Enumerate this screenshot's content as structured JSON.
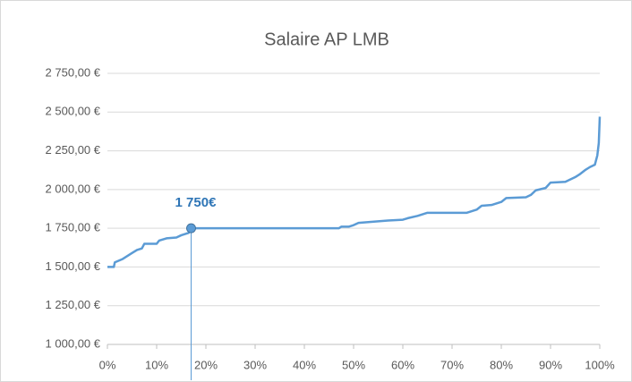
{
  "chart_data": {
    "type": "line",
    "title": "Salaire AP LMB",
    "color": "#5b9bd5",
    "grid": true,
    "x": [
      0,
      1.3,
      1.5,
      3,
      4,
      5,
      6,
      7,
      7.5,
      10,
      10.5,
      12,
      14,
      15,
      16.5,
      17,
      47,
      47.5,
      49,
      50,
      51,
      53,
      55,
      57,
      60,
      61,
      63,
      65,
      73,
      74,
      75,
      76,
      78,
      80,
      81,
      85,
      86,
      87,
      89,
      90,
      93,
      94,
      95,
      96,
      97,
      98,
      99,
      99.5,
      99.8,
      100
    ],
    "values": [
      1500,
      1500,
      1530,
      1550,
      1570,
      1590,
      1610,
      1620,
      1650,
      1650,
      1670,
      1685,
      1690,
      1705,
      1720,
      1750,
      1750,
      1760,
      1760,
      1770,
      1785,
      1790,
      1795,
      1800,
      1805,
      1815,
      1830,
      1850,
      1850,
      1860,
      1870,
      1895,
      1900,
      1920,
      1945,
      1950,
      1965,
      1995,
      2010,
      2045,
      2050,
      2065,
      2080,
      2100,
      2125,
      2145,
      2160,
      2220,
      2300,
      2470
    ],
    "xlim": [
      0,
      100
    ],
    "xticks": [
      {
        "value": 0,
        "label": "0%"
      },
      {
        "value": 10,
        "label": "10%"
      },
      {
        "value": 20,
        "label": "20%"
      },
      {
        "value": 30,
        "label": "30%"
      },
      {
        "value": 40,
        "label": "40%"
      },
      {
        "value": 50,
        "label": "50%"
      },
      {
        "value": 60,
        "label": "60%"
      },
      {
        "value": 70,
        "label": "70%"
      },
      {
        "value": 80,
        "label": "80%"
      },
      {
        "value": 90,
        "label": "90%"
      },
      {
        "value": 100,
        "label": "100%"
      }
    ],
    "ylim": [
      1000,
      2750
    ],
    "yticks": [
      {
        "value": 1000,
        "label": "1 000,00 €"
      },
      {
        "value": 1250,
        "label": "1 250,00 €"
      },
      {
        "value": 1500,
        "label": "1 500,00 €"
      },
      {
        "value": 1750,
        "label": "1 750,00 €"
      },
      {
        "value": 2000,
        "label": "2 000,00 €"
      },
      {
        "value": 2250,
        "label": "2 250,00 €"
      },
      {
        "value": 2500,
        "label": "2 500,00 €"
      },
      {
        "value": 2750,
        "label": "2 750,00 €"
      }
    ],
    "annotations": [
      {
        "text": "1 750€",
        "x": 17,
        "y": 1750
      }
    ]
  }
}
